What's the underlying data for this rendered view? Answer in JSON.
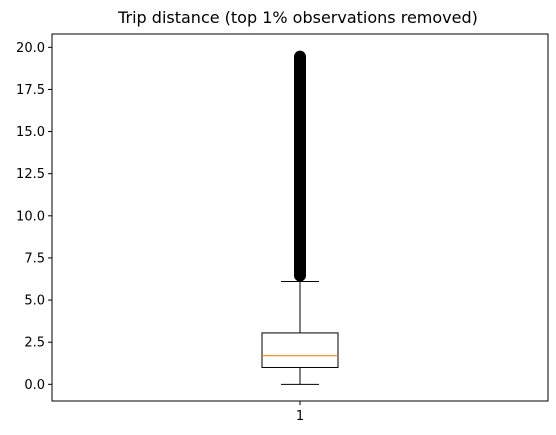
{
  "chart_data": {
    "type": "boxplot",
    "title": "Trip distance (top 1% observations removed)",
    "xlabel": "",
    "ylabel": "",
    "categories": [
      "1"
    ],
    "ylim": [
      -0.99,
      20.79
    ],
    "yticks": [
      "0.0",
      "2.5",
      "5.0",
      "7.5",
      "10.0",
      "12.5",
      "15.0",
      "17.5",
      "20.0"
    ],
    "ytick_values": [
      0,
      2.5,
      5,
      7.5,
      10,
      12.5,
      15,
      17.5,
      20
    ],
    "boxes": [
      {
        "name": "1",
        "whisker_low": 0.0,
        "q1": 1.0,
        "median": 1.7,
        "q3": 3.05,
        "whisker_high": 6.1,
        "outliers_range": [
          6.1,
          19.8
        ]
      }
    ],
    "grid": false,
    "colors": {
      "box": "#000000",
      "median": "#ff7f0e",
      "outliers": "#000000"
    }
  }
}
